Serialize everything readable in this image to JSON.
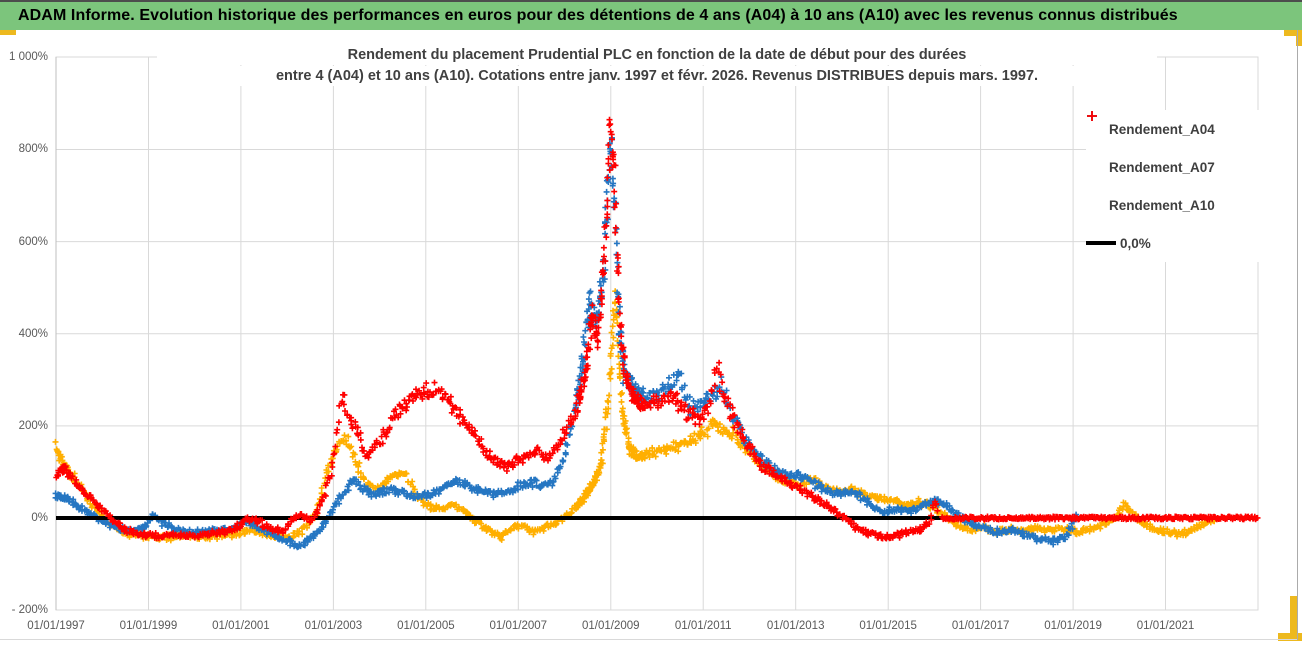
{
  "header": {
    "title": "ADAM Informe. Evolution historique des performances en euros pour des détentions de 4 ans (A04) à 10 ans (A10) avec les revenus connus distribués",
    "bg_color": "#7cc57c",
    "accent_gold": "#edb91f"
  },
  "chart_data": {
    "type": "scatter",
    "title_line1": "Rendement du placement Prudential PLC en fonction de la date de début pour des durées",
    "title_line2": "entre 4 (A04) et 10 ans (A10). Cotations entre janv. 1997 et févr. 2026. Revenus DISTRIBUES depuis mars. 1997.",
    "grid": true,
    "grid_color": "#d9d9d9",
    "axis_text_color": "#595959",
    "xlim_years": [
      1997,
      2023
    ],
    "ylim": [
      -200,
      1000
    ],
    "y_ticks": [
      {
        "label": "1 000%",
        "value": 1000
      },
      {
        "label": "800%",
        "value": 800
      },
      {
        "label": "600%",
        "value": 600
      },
      {
        "label": "400%",
        "value": 400
      },
      {
        "label": "200%",
        "value": 200
      },
      {
        "label": "0%",
        "value": 0
      },
      {
        "label": "- 200%",
        "value": -200
      }
    ],
    "x_ticks": [
      {
        "label": "01/01/1997",
        "year": 1997
      },
      {
        "label": "01/01/1999",
        "year": 1999
      },
      {
        "label": "01/01/2001",
        "year": 2001
      },
      {
        "label": "01/01/2003",
        "year": 2003
      },
      {
        "label": "01/01/2005",
        "year": 2005
      },
      {
        "label": "01/01/2007",
        "year": 2007
      },
      {
        "label": "01/01/2009",
        "year": 2009
      },
      {
        "label": "01/01/2011",
        "year": 2011
      },
      {
        "label": "01/01/2013",
        "year": 2013
      },
      {
        "label": "01/01/2015",
        "year": 2015
      },
      {
        "label": "01/01/2017",
        "year": 2017
      },
      {
        "label": "01/01/2019",
        "year": 2019
      },
      {
        "label": "01/01/2021",
        "year": 2021
      }
    ],
    "legend": [
      {
        "label": "Rendement_A04",
        "color": "#ffaf00",
        "marker": "plus"
      },
      {
        "label": "Rendement_A07",
        "color": "#2576c2",
        "marker": "plus"
      },
      {
        "label": "Rendement_A10",
        "color": "#ff0000",
        "marker": "plus"
      },
      {
        "label": "0,0%",
        "color": "#000000",
        "marker": "line"
      }
    ],
    "zero_line": {
      "value": 0,
      "color": "#000000"
    },
    "series": [
      {
        "name": "Rendement_A04",
        "color": "#ffaf00",
        "start": 1997.0,
        "end": 2022.08,
        "anchors": [
          [
            1997.0,
            155
          ],
          [
            1997.15,
            120
          ],
          [
            1997.4,
            85
          ],
          [
            1997.7,
            40
          ],
          [
            1998.0,
            5
          ],
          [
            1998.3,
            -20
          ],
          [
            1998.6,
            -35
          ],
          [
            1999.0,
            -40
          ],
          [
            1999.4,
            -43
          ],
          [
            1999.8,
            -38
          ],
          [
            2000.2,
            -42
          ],
          [
            2000.6,
            -38
          ],
          [
            2001.0,
            -33
          ],
          [
            2001.2,
            -25
          ],
          [
            2001.5,
            -35
          ],
          [
            2001.8,
            -40
          ],
          [
            2002.1,
            -42
          ],
          [
            2002.35,
            -25
          ],
          [
            2002.6,
            5
          ],
          [
            2002.85,
            100
          ],
          [
            2003.1,
            160
          ],
          [
            2003.3,
            172
          ],
          [
            2003.5,
            115
          ],
          [
            2003.7,
            72
          ],
          [
            2004.0,
            62
          ],
          [
            2004.3,
            92
          ],
          [
            2004.55,
            98
          ],
          [
            2004.8,
            48
          ],
          [
            2005.0,
            28
          ],
          [
            2005.3,
            20
          ],
          [
            2005.6,
            30
          ],
          [
            2005.9,
            8
          ],
          [
            2006.15,
            -12
          ],
          [
            2006.4,
            -30
          ],
          [
            2006.6,
            -42
          ],
          [
            2006.85,
            -22
          ],
          [
            2007.1,
            -18
          ],
          [
            2007.35,
            -32
          ],
          [
            2007.6,
            -20
          ],
          [
            2007.9,
            -8
          ],
          [
            2008.1,
            10
          ],
          [
            2008.35,
            35
          ],
          [
            2008.6,
            70
          ],
          [
            2008.8,
            115
          ],
          [
            2008.95,
            260
          ],
          [
            2009.08,
            480
          ],
          [
            2009.15,
            380
          ],
          [
            2009.25,
            230
          ],
          [
            2009.4,
            150
          ],
          [
            2009.6,
            130
          ],
          [
            2009.9,
            140
          ],
          [
            2010.2,
            148
          ],
          [
            2010.5,
            158
          ],
          [
            2010.8,
            172
          ],
          [
            2011.0,
            185
          ],
          [
            2011.25,
            210
          ],
          [
            2011.4,
            195
          ],
          [
            2011.6,
            185
          ],
          [
            2011.9,
            150
          ],
          [
            2012.2,
            120
          ],
          [
            2012.5,
            95
          ],
          [
            2012.8,
            78
          ],
          [
            2013.1,
            72
          ],
          [
            2013.35,
            85
          ],
          [
            2013.6,
            72
          ],
          [
            2013.9,
            58
          ],
          [
            2014.2,
            62
          ],
          [
            2014.5,
            50
          ],
          [
            2014.8,
            42
          ],
          [
            2015.1,
            38
          ],
          [
            2015.4,
            28
          ],
          [
            2015.7,
            35
          ],
          [
            2016.0,
            22
          ],
          [
            2016.3,
            2
          ],
          [
            2016.55,
            -18
          ],
          [
            2016.8,
            -28
          ],
          [
            2017.05,
            -20
          ],
          [
            2017.3,
            -32
          ],
          [
            2017.6,
            -24
          ],
          [
            2017.9,
            -30
          ],
          [
            2018.2,
            -22
          ],
          [
            2018.5,
            -28
          ],
          [
            2018.8,
            -24
          ],
          [
            2019.1,
            -30
          ],
          [
            2019.4,
            -24
          ],
          [
            2019.7,
            -12
          ],
          [
            2019.95,
            2
          ],
          [
            2020.1,
            32
          ],
          [
            2020.25,
            12
          ],
          [
            2020.5,
            -12
          ],
          [
            2020.8,
            -26
          ],
          [
            2021.1,
            -32
          ],
          [
            2021.4,
            -34
          ],
          [
            2021.7,
            -18
          ],
          [
            2021.95,
            -6
          ],
          [
            2022.08,
            -2
          ]
        ]
      },
      {
        "name": "Rendement_A07",
        "color": "#2576c2",
        "start": 1997.0,
        "end": 2019.08,
        "anchors": [
          [
            1997.0,
            50
          ],
          [
            1997.3,
            38
          ],
          [
            1997.6,
            18
          ],
          [
            1997.9,
            -2
          ],
          [
            1998.2,
            -18
          ],
          [
            1998.6,
            -28
          ],
          [
            1998.9,
            -22
          ],
          [
            1999.1,
            8
          ],
          [
            1999.3,
            -12
          ],
          [
            1999.6,
            -26
          ],
          [
            2000.0,
            -30
          ],
          [
            2000.4,
            -28
          ],
          [
            2000.8,
            -24
          ],
          [
            2001.1,
            -8
          ],
          [
            2001.35,
            -18
          ],
          [
            2001.6,
            -32
          ],
          [
            2001.85,
            -45
          ],
          [
            2002.1,
            -55
          ],
          [
            2002.3,
            -58
          ],
          [
            2002.55,
            -42
          ],
          [
            2002.8,
            -12
          ],
          [
            2003.0,
            22
          ],
          [
            2003.25,
            58
          ],
          [
            2003.45,
            82
          ],
          [
            2003.65,
            62
          ],
          [
            2003.9,
            52
          ],
          [
            2004.2,
            62
          ],
          [
            2004.5,
            55
          ],
          [
            2004.8,
            44
          ],
          [
            2005.1,
            50
          ],
          [
            2005.4,
            68
          ],
          [
            2005.65,
            80
          ],
          [
            2005.9,
            70
          ],
          [
            2006.15,
            58
          ],
          [
            2006.45,
            52
          ],
          [
            2006.75,
            58
          ],
          [
            2007.0,
            68
          ],
          [
            2007.25,
            78
          ],
          [
            2007.5,
            72
          ],
          [
            2007.75,
            80
          ],
          [
            2008.0,
            130
          ],
          [
            2008.2,
            210
          ],
          [
            2008.4,
            350
          ],
          [
            2008.55,
            470
          ],
          [
            2008.7,
            420
          ],
          [
            2008.85,
            560
          ],
          [
            2009.0,
            820
          ],
          [
            2009.08,
            700
          ],
          [
            2009.18,
            430
          ],
          [
            2009.3,
            310
          ],
          [
            2009.5,
            275
          ],
          [
            2009.8,
            255
          ],
          [
            2010.0,
            268
          ],
          [
            2010.3,
            288
          ],
          [
            2010.5,
            305
          ],
          [
            2010.75,
            235
          ],
          [
            2011.0,
            248
          ],
          [
            2011.2,
            268
          ],
          [
            2011.38,
            295
          ],
          [
            2011.6,
            232
          ],
          [
            2011.9,
            172
          ],
          [
            2012.2,
            132
          ],
          [
            2012.5,
            108
          ],
          [
            2012.8,
            92
          ],
          [
            2013.05,
            94
          ],
          [
            2013.35,
            78
          ],
          [
            2013.65,
            58
          ],
          [
            2013.95,
            54
          ],
          [
            2014.25,
            58
          ],
          [
            2014.6,
            32
          ],
          [
            2014.9,
            12
          ],
          [
            2015.15,
            20
          ],
          [
            2015.45,
            14
          ],
          [
            2015.75,
            25
          ],
          [
            2016.0,
            38
          ],
          [
            2016.25,
            28
          ],
          [
            2016.5,
            8
          ],
          [
            2016.8,
            -12
          ],
          [
            2017.1,
            -22
          ],
          [
            2017.4,
            -32
          ],
          [
            2017.7,
            -26
          ],
          [
            2018.0,
            -36
          ],
          [
            2018.3,
            -46
          ],
          [
            2018.6,
            -50
          ],
          [
            2018.85,
            -38
          ],
          [
            2019.0,
            -12
          ],
          [
            2019.08,
            4
          ]
        ]
      },
      {
        "name": "Rendement_A10",
        "color": "#ff0000",
        "start": 1997.0,
        "end": 2016.08,
        "zero_run": [
          2016.17,
          2023.0
        ],
        "anchors": [
          [
            1997.0,
            95
          ],
          [
            1997.2,
            108
          ],
          [
            1997.5,
            68
          ],
          [
            1997.8,
            38
          ],
          [
            1998.0,
            18
          ],
          [
            1998.25,
            -8
          ],
          [
            1998.5,
            -26
          ],
          [
            1998.8,
            -36
          ],
          [
            1999.2,
            -40
          ],
          [
            1999.6,
            -34
          ],
          [
            2000.0,
            -40
          ],
          [
            2000.4,
            -34
          ],
          [
            2000.8,
            -28
          ],
          [
            2001.1,
            -6
          ],
          [
            2001.3,
            -2
          ],
          [
            2001.6,
            -22
          ],
          [
            2001.9,
            -32
          ],
          [
            2002.1,
            -2
          ],
          [
            2002.3,
            8
          ],
          [
            2002.5,
            -6
          ],
          [
            2002.7,
            18
          ],
          [
            2002.85,
            58
          ],
          [
            2003.0,
            125
          ],
          [
            2003.2,
            265
          ],
          [
            2003.35,
            205
          ],
          [
            2003.55,
            185
          ],
          [
            2003.7,
            128
          ],
          [
            2003.9,
            158
          ],
          [
            2004.1,
            182
          ],
          [
            2004.35,
            228
          ],
          [
            2004.6,
            252
          ],
          [
            2004.9,
            268
          ],
          [
            2005.15,
            282
          ],
          [
            2005.4,
            268
          ],
          [
            2005.6,
            238
          ],
          [
            2005.85,
            208
          ],
          [
            2006.05,
            185
          ],
          [
            2006.25,
            148
          ],
          [
            2006.5,
            122
          ],
          [
            2006.75,
            112
          ],
          [
            2006.95,
            126
          ],
          [
            2007.15,
            132
          ],
          [
            2007.4,
            145
          ],
          [
            2007.6,
            130
          ],
          [
            2007.85,
            152
          ],
          [
            2008.05,
            195
          ],
          [
            2008.25,
            235
          ],
          [
            2008.45,
            310
          ],
          [
            2008.6,
            450
          ],
          [
            2008.72,
            390
          ],
          [
            2008.85,
            540
          ],
          [
            2009.0,
            860
          ],
          [
            2009.08,
            740
          ],
          [
            2009.18,
            460
          ],
          [
            2009.3,
            315
          ],
          [
            2009.5,
            262
          ],
          [
            2009.75,
            242
          ],
          [
            2010.0,
            252
          ],
          [
            2010.3,
            268
          ],
          [
            2010.6,
            232
          ],
          [
            2010.9,
            212
          ],
          [
            2011.1,
            238
          ],
          [
            2011.3,
            330
          ],
          [
            2011.45,
            268
          ],
          [
            2011.7,
            205
          ],
          [
            2012.0,
            152
          ],
          [
            2012.3,
            112
          ],
          [
            2012.6,
            92
          ],
          [
            2012.9,
            72
          ],
          [
            2013.15,
            60
          ],
          [
            2013.45,
            42
          ],
          [
            2013.75,
            22
          ],
          [
            2014.05,
            -2
          ],
          [
            2014.35,
            -22
          ],
          [
            2014.65,
            -36
          ],
          [
            2014.95,
            -44
          ],
          [
            2015.2,
            -38
          ],
          [
            2015.45,
            -30
          ],
          [
            2015.7,
            -24
          ],
          [
            2015.9,
            -12
          ],
          [
            2016.0,
            40
          ],
          [
            2016.08,
            15
          ]
        ]
      }
    ]
  }
}
